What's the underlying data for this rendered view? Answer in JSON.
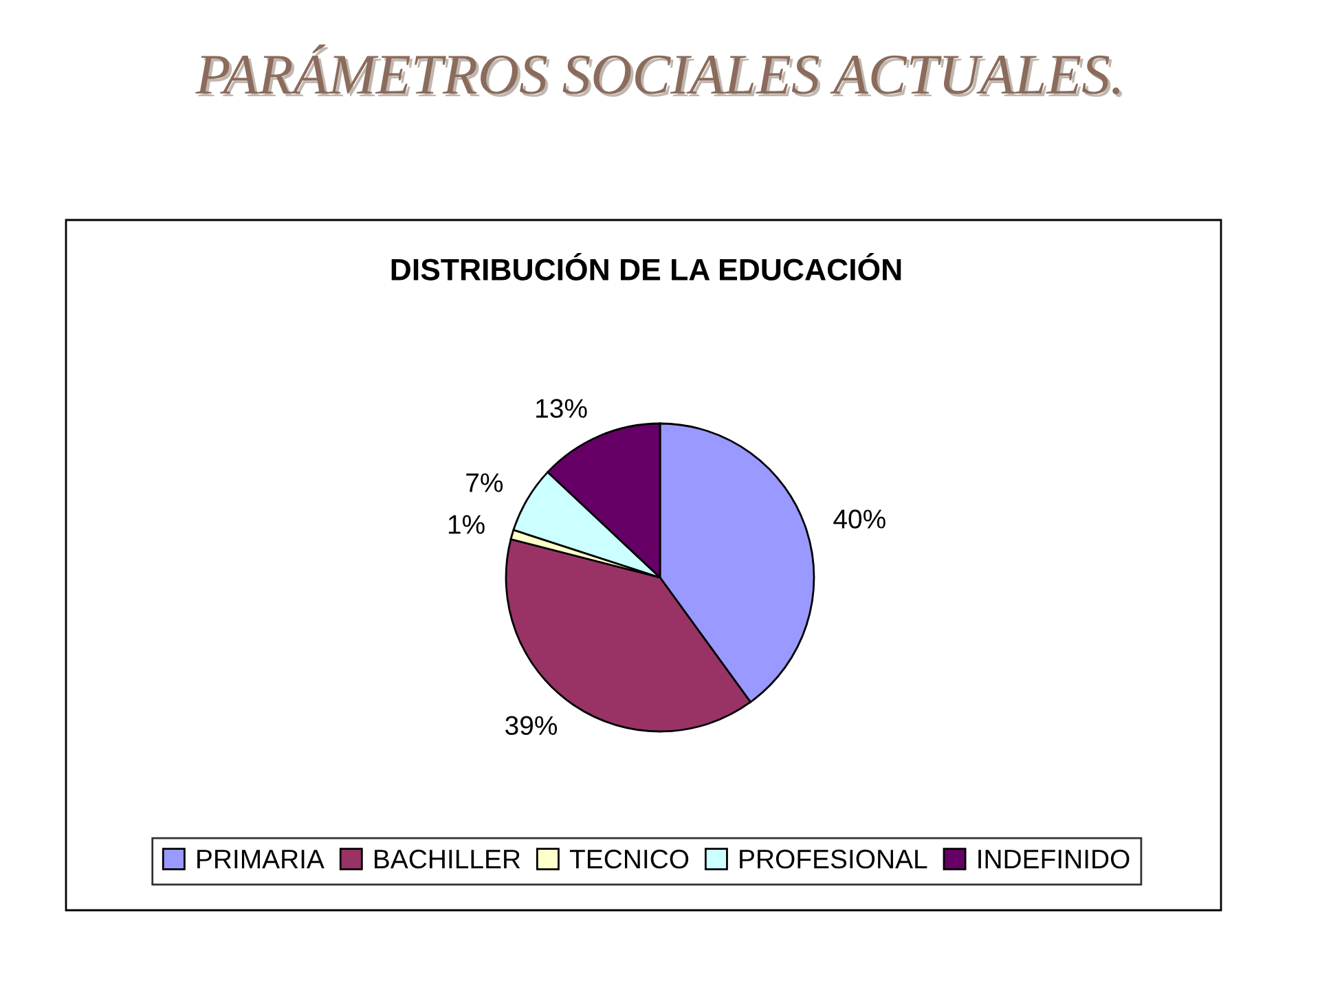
{
  "chart_data": {
    "type": "pie",
    "title": "PARÁMETROS SOCIALES ACTUALES.",
    "subtitle": "DISTRIBUCIÓN DE LA EDUCACIÓN",
    "categories": [
      "PRIMARIA",
      "BACHILLER",
      "TECNICO",
      "PROFESIONAL",
      "INDEFINIDO"
    ],
    "values": [
      40,
      39,
      1,
      7,
      13
    ],
    "value_labels": [
      "40%",
      "39%",
      "1%",
      "7%",
      "13%"
    ],
    "colors": [
      "#9999ff",
      "#993366",
      "#ffffcc",
      "#ccffff",
      "#660066"
    ],
    "legend": "bottom"
  }
}
